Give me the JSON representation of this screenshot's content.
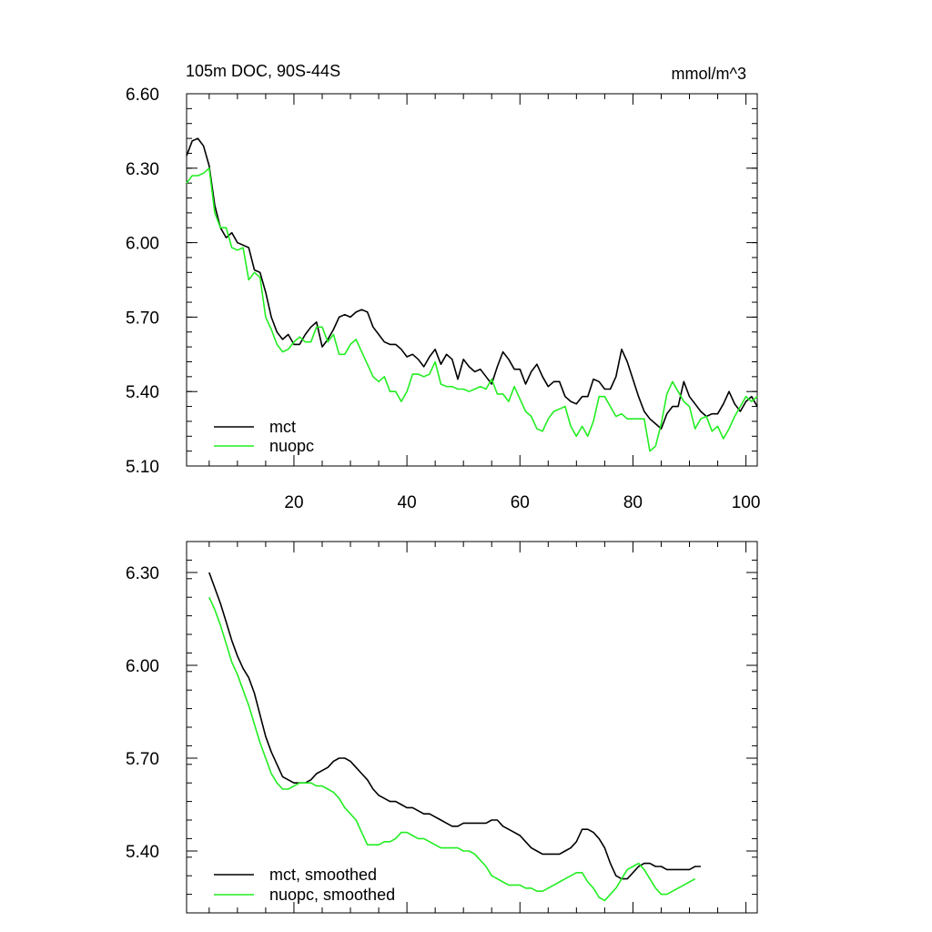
{
  "colors": {
    "mct": "#000000",
    "nuopc": "#22ee22",
    "frame": "#000000"
  },
  "chart_data": [
    {
      "type": "line",
      "title_left": "105m DOC, 90S-44S",
      "title_right": "mmol/m^3",
      "xlabel": "",
      "ylabel": "",
      "xlim": [
        1,
        102
      ],
      "ylim": [
        5.1,
        6.6
      ],
      "yticks": [
        5.1,
        5.4,
        5.7,
        6.0,
        6.3,
        6.6
      ],
      "ytick_labels": [
        "5.10",
        "5.40",
        "5.70",
        "6.00",
        "6.30",
        "6.60"
      ],
      "xticks": [
        20,
        40,
        60,
        80,
        100
      ],
      "xtick_labels": [
        "20",
        "40",
        "60",
        "80",
        "100"
      ],
      "legend": [
        "mct",
        "nuopc"
      ],
      "series": [
        {
          "name": "mct",
          "color_key": "mct",
          "x_start": 1,
          "values": [
            6.35,
            6.41,
            6.42,
            6.39,
            6.31,
            6.15,
            6.06,
            6.02,
            6.04,
            6.0,
            5.99,
            5.98,
            5.89,
            5.88,
            5.8,
            5.7,
            5.64,
            5.61,
            5.63,
            5.59,
            5.59,
            5.63,
            5.66,
            5.68,
            5.58,
            5.61,
            5.65,
            5.7,
            5.71,
            5.7,
            5.72,
            5.73,
            5.72,
            5.66,
            5.63,
            5.6,
            5.59,
            5.59,
            5.57,
            5.54,
            5.55,
            5.53,
            5.5,
            5.54,
            5.57,
            5.51,
            5.55,
            5.53,
            5.45,
            5.53,
            5.5,
            5.48,
            5.49,
            5.46,
            5.43,
            5.5,
            5.56,
            5.53,
            5.49,
            5.49,
            5.43,
            5.48,
            5.51,
            5.46,
            5.42,
            5.44,
            5.44,
            5.38,
            5.36,
            5.35,
            5.38,
            5.38,
            5.45,
            5.44,
            5.41,
            5.41,
            5.46,
            5.57,
            5.52,
            5.45,
            5.38,
            5.32,
            5.29,
            5.27,
            5.25,
            5.31,
            5.34,
            5.34,
            5.44,
            5.38,
            5.35,
            5.32,
            5.3,
            5.31,
            5.31,
            5.35,
            5.4,
            5.35,
            5.32,
            5.36,
            5.38,
            5.34
          ]
        },
        {
          "name": "nuopc",
          "color_key": "nuopc",
          "x_start": 1,
          "values": [
            6.24,
            6.27,
            6.27,
            6.28,
            6.3,
            6.12,
            6.06,
            6.06,
            5.98,
            5.97,
            5.98,
            5.85,
            5.88,
            5.86,
            5.7,
            5.65,
            5.59,
            5.56,
            5.57,
            5.6,
            5.62,
            5.6,
            5.6,
            5.66,
            5.66,
            5.6,
            5.63,
            5.55,
            5.55,
            5.59,
            5.61,
            5.56,
            5.51,
            5.46,
            5.44,
            5.46,
            5.4,
            5.4,
            5.36,
            5.4,
            5.47,
            5.47,
            5.46,
            5.47,
            5.52,
            5.43,
            5.42,
            5.42,
            5.41,
            5.41,
            5.4,
            5.41,
            5.42,
            5.41,
            5.45,
            5.39,
            5.39,
            5.36,
            5.42,
            5.37,
            5.32,
            5.3,
            5.25,
            5.24,
            5.29,
            5.32,
            5.33,
            5.34,
            5.26,
            5.22,
            5.26,
            5.22,
            5.28,
            5.38,
            5.38,
            5.34,
            5.3,
            5.31,
            5.29,
            5.29,
            5.29,
            5.29,
            5.16,
            5.18,
            5.27,
            5.39,
            5.44,
            5.4,
            5.36,
            5.34,
            5.25,
            5.29,
            5.3,
            5.24,
            5.26,
            5.21,
            5.25,
            5.3,
            5.34,
            5.38,
            5.36,
            5.38
          ]
        }
      ]
    },
    {
      "type": "line",
      "xlabel": "",
      "ylabel": "",
      "xlim": [
        1,
        102
      ],
      "ylim": [
        5.2,
        6.4
      ],
      "yticks": [
        5.4,
        5.7,
        6.0,
        6.3
      ],
      "ytick_labels": [
        "5.40",
        "5.70",
        "6.00",
        "6.30"
      ],
      "xticks": [
        20,
        40,
        60,
        80,
        100
      ],
      "legend": [
        "mct, smoothed",
        "nuopc, smoothed"
      ],
      "series": [
        {
          "name": "mct, smoothed",
          "color_key": "mct",
          "x_start": 5,
          "values": [
            6.3,
            6.25,
            6.2,
            6.14,
            6.08,
            6.03,
            5.99,
            5.96,
            5.91,
            5.84,
            5.77,
            5.72,
            5.68,
            5.64,
            5.63,
            5.62,
            5.62,
            5.62,
            5.63,
            5.65,
            5.66,
            5.67,
            5.69,
            5.7,
            5.7,
            5.69,
            5.67,
            5.65,
            5.63,
            5.6,
            5.58,
            5.57,
            5.56,
            5.56,
            5.55,
            5.54,
            5.54,
            5.53,
            5.52,
            5.52,
            5.51,
            5.5,
            5.49,
            5.48,
            5.48,
            5.49,
            5.49,
            5.49,
            5.49,
            5.49,
            5.5,
            5.5,
            5.48,
            5.47,
            5.46,
            5.45,
            5.43,
            5.41,
            5.4,
            5.39,
            5.39,
            5.39,
            5.39,
            5.4,
            5.41,
            5.43,
            5.47,
            5.47,
            5.46,
            5.44,
            5.41,
            5.36,
            5.32,
            5.31,
            5.31,
            5.33,
            5.35,
            5.36,
            5.36,
            5.35,
            5.35,
            5.34,
            5.34,
            5.34,
            5.34,
            5.34,
            5.35,
            5.35
          ]
        },
        {
          "name": "nuopc, smoothed",
          "color_key": "nuopc",
          "x_start": 5,
          "values": [
            6.22,
            6.18,
            6.13,
            6.07,
            6.01,
            5.97,
            5.92,
            5.87,
            5.81,
            5.75,
            5.7,
            5.65,
            5.62,
            5.6,
            5.6,
            5.61,
            5.62,
            5.62,
            5.62,
            5.61,
            5.61,
            5.6,
            5.59,
            5.57,
            5.54,
            5.52,
            5.5,
            5.46,
            5.42,
            5.42,
            5.42,
            5.43,
            5.43,
            5.44,
            5.46,
            5.46,
            5.45,
            5.44,
            5.44,
            5.43,
            5.42,
            5.41,
            5.41,
            5.41,
            5.41,
            5.4,
            5.4,
            5.39,
            5.37,
            5.35,
            5.32,
            5.31,
            5.3,
            5.29,
            5.29,
            5.29,
            5.28,
            5.28,
            5.27,
            5.27,
            5.28,
            5.29,
            5.3,
            5.31,
            5.32,
            5.33,
            5.33,
            5.3,
            5.28,
            5.25,
            5.24,
            5.26,
            5.28,
            5.31,
            5.34,
            5.35,
            5.36,
            5.34,
            5.31,
            5.28,
            5.26,
            5.26,
            5.27,
            5.28,
            5.29,
            5.3,
            5.31
          ]
        }
      ]
    }
  ]
}
